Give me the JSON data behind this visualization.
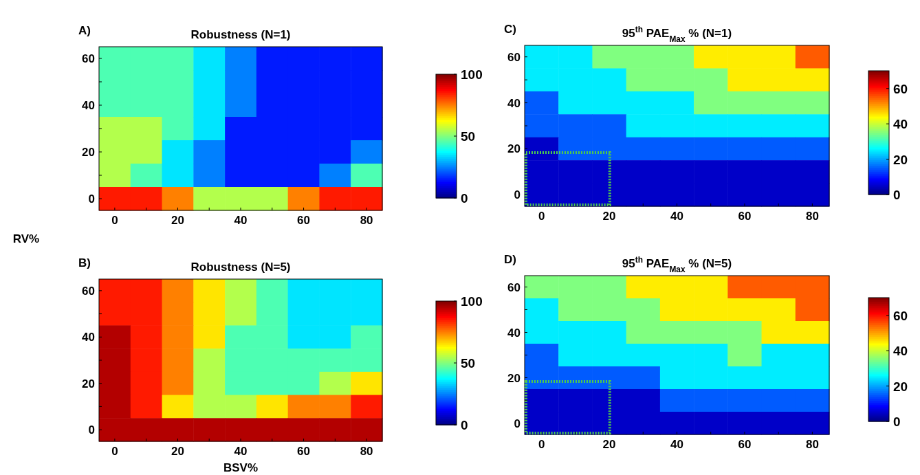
{
  "chart_data": [
    {
      "type": "heatmap",
      "title": "Robustness (N=1)",
      "ylabel": "RV%",
      "annotations": [
        "A)"
      ],
      "categories": [
        "0",
        null,
        "20",
        null,
        "40",
        null,
        "60",
        null,
        "80"
      ],
      "y_categories": [
        "60",
        null,
        "40",
        null,
        "20",
        null,
        "0"
      ],
      "cells": [
        [
          45,
          45,
          45,
          35,
          25,
          15,
          15,
          15,
          15
        ],
        [
          45,
          45,
          45,
          35,
          25,
          15,
          15,
          15,
          15
        ],
        [
          45,
          45,
          45,
          35,
          25,
          15,
          15,
          15,
          15
        ],
        [
          55,
          55,
          45,
          35,
          15,
          15,
          15,
          15,
          15
        ],
        [
          55,
          55,
          35,
          25,
          15,
          15,
          15,
          15,
          25
        ],
        [
          55,
          45,
          35,
          25,
          15,
          15,
          15,
          25,
          45
        ],
        [
          85,
          85,
          75,
          55,
          55,
          55,
          75,
          85,
          85
        ]
      ],
      "clim": [
        0,
        100
      ],
      "cticks": [
        0,
        50,
        100
      ]
    },
    {
      "type": "heatmap",
      "title": "Robustness (N=5)",
      "xlabel": "BSV%",
      "annotations": [
        "B)"
      ],
      "categories": [
        "0",
        null,
        "20",
        null,
        "40",
        null,
        "60",
        null,
        "80"
      ],
      "y_categories": [
        "60",
        null,
        "40",
        null,
        "20",
        null,
        "0"
      ],
      "cells": [
        [
          85,
          85,
          75,
          65,
          55,
          45,
          35,
          35,
          35
        ],
        [
          85,
          85,
          75,
          65,
          55,
          45,
          35,
          35,
          35
        ],
        [
          95,
          85,
          75,
          65,
          45,
          45,
          35,
          35,
          45
        ],
        [
          95,
          85,
          75,
          55,
          45,
          45,
          45,
          45,
          45
        ],
        [
          95,
          85,
          75,
          55,
          45,
          45,
          45,
          55,
          65
        ],
        [
          95,
          85,
          65,
          55,
          55,
          65,
          75,
          75,
          85
        ],
        [
          95,
          95,
          95,
          95,
          95,
          95,
          95,
          95,
          95
        ]
      ],
      "clim": [
        0,
        100
      ],
      "cticks": [
        0,
        50,
        100
      ]
    },
    {
      "type": "heatmap",
      "title": "95$^{th}$ PAE$_{Max}$ % (N=1)",
      "annotations": [
        "C)"
      ],
      "categories": [
        "0",
        null,
        "20",
        null,
        "40",
        null,
        "60",
        null,
        "80"
      ],
      "y_categories": [
        "60",
        null,
        "40",
        null,
        "20",
        null,
        "0"
      ],
      "cells": [
        [
          25,
          25,
          35,
          35,
          35,
          45,
          45,
          45,
          55
        ],
        [
          25,
          25,
          25,
          35,
          35,
          35,
          45,
          45,
          45
        ],
        [
          15,
          25,
          25,
          25,
          25,
          35,
          35,
          35,
          35
        ],
        [
          15,
          15,
          15,
          25,
          25,
          25,
          25,
          25,
          25
        ],
        [
          5,
          15,
          15,
          15,
          15,
          15,
          15,
          15,
          15
        ],
        [
          5,
          5,
          5,
          5,
          5,
          5,
          5,
          5,
          5
        ],
        [
          5,
          5,
          5,
          5,
          5,
          5,
          5,
          5,
          5
        ]
      ],
      "clim": [
        0,
        70
      ],
      "cticks": [
        0,
        20,
        40,
        60
      ]
    },
    {
      "type": "heatmap",
      "title": "95$^{th}$ PAE$_{Max}$ % (N=5)",
      "annotations": [
        "D)"
      ],
      "categories": [
        "0",
        null,
        "20",
        null,
        "40",
        null,
        "60",
        null,
        "80"
      ],
      "y_categories": [
        "60",
        null,
        "40",
        null,
        "20",
        null,
        "0"
      ],
      "cells": [
        [
          35,
          35,
          35,
          45,
          45,
          45,
          55,
          55,
          55
        ],
        [
          25,
          35,
          35,
          35,
          45,
          45,
          45,
          45,
          55
        ],
        [
          25,
          25,
          25,
          35,
          35,
          35,
          35,
          45,
          45
        ],
        [
          15,
          25,
          25,
          25,
          25,
          25,
          35,
          25,
          25
        ],
        [
          15,
          15,
          15,
          15,
          25,
          25,
          25,
          25,
          25
        ],
        [
          5,
          5,
          5,
          5,
          15,
          15,
          15,
          15,
          15
        ],
        [
          5,
          5,
          5,
          5,
          5,
          5,
          5,
          5,
          5
        ]
      ],
      "clim": [
        0,
        70
      ],
      "cticks": [
        0,
        20,
        40,
        60
      ]
    }
  ]
}
